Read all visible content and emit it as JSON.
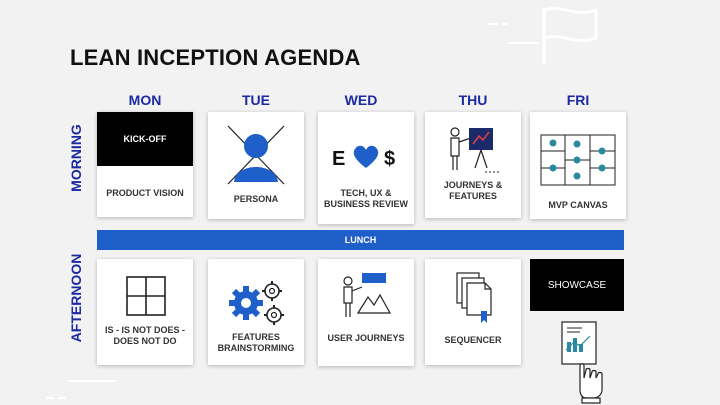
{
  "title": "LEAN INCEPTION AGENDA",
  "days": [
    "MON",
    "TUE",
    "WED",
    "THU",
    "FRI"
  ],
  "periods": {
    "morning": "MORNING",
    "afternoon": "AFTERNOON"
  },
  "morning": [
    {
      "head": "KICK-OFF",
      "label": "PRODUCT VISION"
    },
    {
      "label": "PERSONA",
      "icon": "persona-icon"
    },
    {
      "label": "TECH, UX  & BUSINESS REVIEW",
      "icon": "e-heart-dollar-icon",
      "glyph_left": "E",
      "glyph_right": "$"
    },
    {
      "label": "JOURNEYS & FEATURES",
      "icon": "presenter-board-icon"
    },
    {
      "label": "MVP CANVAS",
      "icon": "canvas-grid-icon"
    }
  ],
  "lunch": "LUNCH",
  "afternoon": [
    {
      "label": "IS - IS NOT DOES - DOES NOT DO",
      "icon": "four-square-grid-icon"
    },
    {
      "label": "FEATURES BRAINSTORMING",
      "icon": "gears-icon"
    },
    {
      "label": "USER JOURNEYS",
      "icon": "presenter-landscape-icon"
    },
    {
      "label": "SEQUENCER",
      "icon": "stacked-documents-icon"
    },
    {
      "head": "SHOWCASE",
      "icon": "report-hand-icon"
    }
  ],
  "colors": {
    "accent_blue": "#1a2aa0",
    "lunch_bar": "#1f5fc9",
    "teal": "#2a8aa0",
    "background": "#f2f2f2"
  }
}
